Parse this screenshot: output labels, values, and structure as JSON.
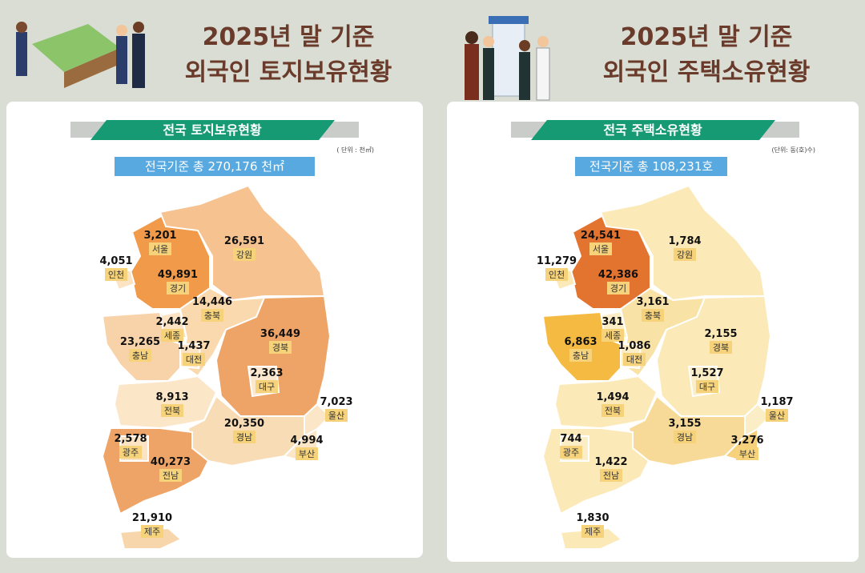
{
  "panels": [
    {
      "title_lines": [
        "2025년 말 기준",
        "외국인 토지보유현황"
      ],
      "box_title": "전국 토지보유현황",
      "unit": "( 단위 : 천㎡)",
      "total": "전국기준 총 270,176 천㎡",
      "regions": [
        {
          "name": "서울",
          "value": "3,201",
          "color": "#ec8a35"
        },
        {
          "name": "경기",
          "value": "49,891",
          "color": "#f09a4a"
        },
        {
          "name": "인천",
          "value": "4,051",
          "color": "#fbe3c4"
        },
        {
          "name": "강원",
          "value": "26,591",
          "color": "#f5c290"
        },
        {
          "name": "충북",
          "value": "14,446",
          "color": "#f9d9ad"
        },
        {
          "name": "세종",
          "value": "2,442",
          "color": "#fbe3c4"
        },
        {
          "name": "대전",
          "value": "1,437",
          "color": "#fbe3c4"
        },
        {
          "name": "충남",
          "value": "23,265",
          "color": "#f8d2a8"
        },
        {
          "name": "경북",
          "value": "36,449",
          "color": "#eea466"
        },
        {
          "name": "대구",
          "value": "2,363",
          "color": "#fbe8cf"
        },
        {
          "name": "전북",
          "value": "8,913",
          "color": "#fbe6c8"
        },
        {
          "name": "경남",
          "value": "20,350",
          "color": "#f8dcb6"
        },
        {
          "name": "울산",
          "value": "7,023",
          "color": "#fbe6c8"
        },
        {
          "name": "부산",
          "value": "4,994",
          "color": "#fbe6c8"
        },
        {
          "name": "전남",
          "value": "40,273",
          "color": "#eea466"
        },
        {
          "name": "광주",
          "value": "2,578",
          "color": "#fbe3c4"
        },
        {
          "name": "제주",
          "value": "21,910",
          "color": "#f8d6ac"
        }
      ]
    },
    {
      "title_lines": [
        "2025년 말 기준",
        "외국인 주택소유현황"
      ],
      "box_title": "전국 주택소유현황",
      "unit": "(단위: 동(호)수)",
      "total": "전국기준 총  108,231호",
      "regions": [
        {
          "name": "서울",
          "value": "24,541",
          "color": "#e06a2c"
        },
        {
          "name": "경기",
          "value": "42,386",
          "color": "#e3742f"
        },
        {
          "name": "인천",
          "value": "11,279",
          "color": "#fbe9b8"
        },
        {
          "name": "강원",
          "value": "1,784",
          "color": "#fbe9b8"
        },
        {
          "name": "충북",
          "value": "3,161",
          "color": "#f9e2a6"
        },
        {
          "name": "세종",
          "value": "341",
          "color": "#fbeec6"
        },
        {
          "name": "대전",
          "value": "1,086",
          "color": "#fbeec6"
        },
        {
          "name": "충남",
          "value": "6,863",
          "color": "#f5ba42"
        },
        {
          "name": "경북",
          "value": "2,155",
          "color": "#fbe9b8"
        },
        {
          "name": "대구",
          "value": "1,527",
          "color": "#fbeec6"
        },
        {
          "name": "전북",
          "value": "1,494",
          "color": "#fbe9b8"
        },
        {
          "name": "경남",
          "value": "3,155",
          "color": "#f8da98"
        },
        {
          "name": "울산",
          "value": "1,187",
          "color": "#fbeec6"
        },
        {
          "name": "부산",
          "value": "3,276",
          "color": "#f6d07c"
        },
        {
          "name": "전남",
          "value": "1,422",
          "color": "#fbe9b8"
        },
        {
          "name": "광주",
          "value": "744",
          "color": "#fbeec6"
        },
        {
          "name": "제주",
          "value": "1,830",
          "color": "#fbe9b8"
        }
      ]
    }
  ]
}
